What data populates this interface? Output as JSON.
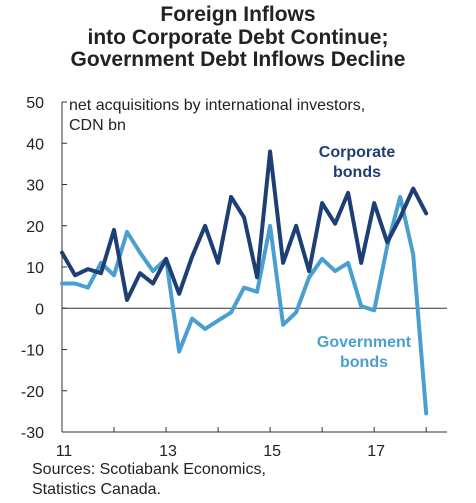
{
  "chart_data": {
    "type": "line",
    "title_lines": [
      "Foreign Inflows",
      "into Corporate Debt Continue;",
      "Government Debt Inflows Decline"
    ],
    "subtitle_lines": [
      "net acquisitions by international investors,",
      "CDN bn"
    ],
    "x_tick_labels": [
      {
        "x": 2011,
        "label": "11"
      },
      {
        "x": 2013,
        "label": "13"
      },
      {
        "x": 2015,
        "label": "15"
      },
      {
        "x": 2017,
        "label": "17"
      }
    ],
    "xlim": [
      2011.0,
      2018.4
    ],
    "ylim": [
      -30,
      50
    ],
    "y_ticks": [
      50,
      40,
      30,
      20,
      10,
      0,
      -10,
      -20,
      -30
    ],
    "annotations": {
      "corporate": [
        "Corporate",
        "bonds"
      ],
      "government": [
        "Government",
        "bonds"
      ]
    },
    "series": [
      {
        "name": "Corporate bonds",
        "color": "#1e3f73",
        "x": [
          2011.0,
          2011.25,
          2011.5,
          2011.75,
          2012.0,
          2012.25,
          2012.5,
          2012.75,
          2013.0,
          2013.25,
          2013.5,
          2013.75,
          2014.0,
          2014.25,
          2014.5,
          2014.75,
          2015.0,
          2015.25,
          2015.5,
          2015.75,
          2016.0,
          2016.25,
          2016.5,
          2016.75,
          2017.0,
          2017.25,
          2017.5,
          2017.75,
          2018.0,
          2018.25
        ],
        "values": [
          13.5,
          8.0,
          9.5,
          8.5,
          19.0,
          2.0,
          8.5,
          6.0,
          12.0,
          3.5,
          12.5,
          20.0,
          11.0,
          27.0,
          22.0,
          7.5,
          38.0,
          11.0,
          20.0,
          9.0,
          25.5,
          20.5,
          28.0,
          11.0,
          25.5,
          16.0,
          22.0,
          29.0,
          23.0,
          null
        ]
      },
      {
        "name": "Government bonds",
        "color": "#4a9fd1",
        "x": [
          2011.0,
          2011.25,
          2011.5,
          2011.75,
          2012.0,
          2012.25,
          2012.5,
          2012.75,
          2013.0,
          2013.25,
          2013.5,
          2013.75,
          2014.0,
          2014.25,
          2014.5,
          2014.75,
          2015.0,
          2015.25,
          2015.5,
          2015.75,
          2016.0,
          2016.25,
          2016.5,
          2016.75,
          2017.0,
          2017.25,
          2017.5,
          2017.75,
          2018.0,
          2018.25
        ],
        "values": [
          6.0,
          6.0,
          5.0,
          11.0,
          8.0,
          18.5,
          13.5,
          9.0,
          12.0,
          -10.5,
          -2.5,
          -5.0,
          -3.0,
          -1.0,
          5.0,
          4.0,
          20.0,
          -4.0,
          -1.0,
          7.5,
          12.0,
          9.0,
          11.0,
          0.5,
          -0.5,
          15.0,
          27.0,
          13.0,
          -25.5,
          null
        ]
      }
    ]
  },
  "source_lines": [
    "Sources: Scotiabank Economics,",
    "Statistics Canada."
  ]
}
